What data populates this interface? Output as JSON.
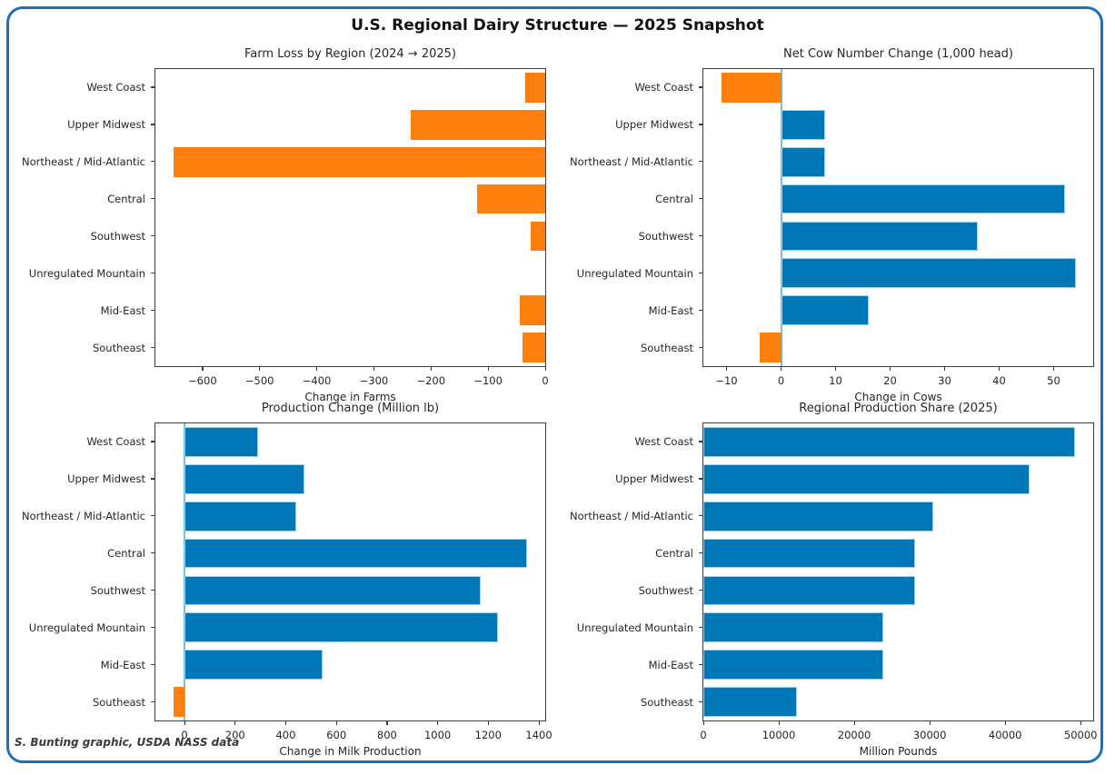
{
  "title": "U.S. Regional Dairy Structure — 2025 Snapshot",
  "footnote": "S. Bunting graphic, USDA NASS data",
  "colors": {
    "blue": "#0077b6",
    "orange": "#ff7f0e",
    "bar_edge": "#9fd0ec",
    "zero_line": "#74c0e3",
    "frame": "#1f6fb5",
    "spine": "#3c3c3c",
    "text": "#262626"
  },
  "categories": [
    "West Coast",
    "Upper Midwest",
    "Northeast / Mid-Atlantic",
    "Central",
    "Southwest",
    "Unregulated Mountain",
    "Mid-East",
    "Southeast"
  ],
  "chart_data": [
    {
      "type": "bar",
      "orientation": "horizontal",
      "title": "Farm Loss by Region (2024 → 2025)",
      "xlabel": "Change in Farms",
      "xlim": [
        -682.5,
        0
      ],
      "xticks": [
        -600,
        -500,
        -400,
        -300,
        -200,
        -100,
        0
      ],
      "zero_line": false,
      "grid": false,
      "values": [
        -35,
        -235,
        -650,
        -120,
        -25,
        0,
        -45,
        -40
      ],
      "bar_colors": [
        "orange",
        "orange",
        "orange",
        "orange",
        "orange",
        "orange",
        "orange",
        "orange"
      ]
    },
    {
      "type": "bar",
      "orientation": "horizontal",
      "title": "Net Cow Number Change (1,000 head)",
      "xlabel": "Change in Cows",
      "xlim": [
        -14.25,
        57.25
      ],
      "xticks": [
        -10,
        0,
        10,
        20,
        30,
        40,
        50
      ],
      "zero_line": true,
      "grid": false,
      "values": [
        -11,
        8,
        8,
        52,
        36,
        54,
        16,
        -4
      ],
      "bar_colors": [
        "orange",
        "blue",
        "blue",
        "blue",
        "blue",
        "blue",
        "blue",
        "orange"
      ]
    },
    {
      "type": "bar",
      "orientation": "horizontal",
      "title": "Production Change (Million lb)",
      "xlabel": "Change in Milk Production",
      "xlim": [
        -115,
        1425
      ],
      "xticks": [
        0,
        200,
        400,
        600,
        800,
        1000,
        1200,
        1400
      ],
      "zero_line": true,
      "grid": false,
      "values": [
        290,
        475,
        440,
        1355,
        1170,
        1240,
        545,
        -45
      ],
      "bar_colors": [
        "blue",
        "blue",
        "blue",
        "blue",
        "blue",
        "blue",
        "blue",
        "orange"
      ]
    },
    {
      "type": "bar",
      "orientation": "horizontal",
      "title": "Regional Production Share (2025)",
      "xlabel": "Million Pounds",
      "xlim": [
        0,
        51660
      ],
      "xticks": [
        0,
        10000,
        20000,
        30000,
        40000,
        50000
      ],
      "zero_line": false,
      "grid": false,
      "values": [
        49200,
        43200,
        30500,
        28000,
        28000,
        23800,
        23900,
        12400
      ],
      "bar_colors": [
        "blue",
        "blue",
        "blue",
        "blue",
        "blue",
        "blue",
        "blue",
        "blue"
      ]
    }
  ]
}
